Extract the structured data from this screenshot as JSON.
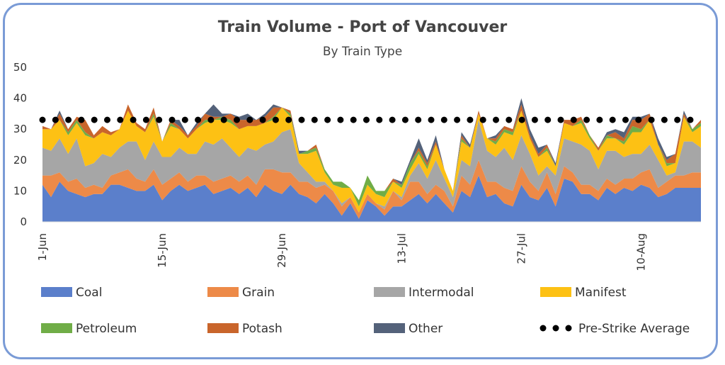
{
  "chart_data": {
    "type": "area",
    "stacked": true,
    "title": "Train Volume - Port of Vancouver",
    "subtitle": "By Train Type",
    "ylim": [
      0,
      50
    ],
    "yticks": [
      0,
      10,
      20,
      30,
      40,
      50
    ],
    "xlabels": [
      {
        "index": 0,
        "label": "1-Jun"
      },
      {
        "index": 14,
        "label": "15-Jun"
      },
      {
        "index": 28,
        "label": "29-Jun"
      },
      {
        "index": 42,
        "label": "13-Jul"
      },
      {
        "index": 56,
        "label": "27-Jul"
      },
      {
        "index": 70,
        "label": "10-Aug"
      }
    ],
    "legend_position": "bottom",
    "reference_line": {
      "name": "Pre-Strike Average",
      "value": 33,
      "color": "#000000"
    },
    "series": [
      {
        "name": "Coal",
        "color": "#5B7FCB",
        "values": [
          12,
          8,
          13,
          10,
          9,
          8,
          9,
          9,
          12,
          12,
          11,
          10,
          10,
          12,
          7,
          10,
          12,
          10,
          11,
          12,
          9,
          10,
          11,
          9,
          11,
          8,
          12,
          10,
          9,
          12,
          9,
          8,
          6,
          9,
          6,
          2,
          6,
          1,
          7,
          5,
          2,
          5,
          5,
          7,
          9,
          6,
          9,
          6,
          3,
          10,
          8,
          15,
          8,
          9,
          6,
          5,
          12,
          8,
          7,
          11,
          5,
          14,
          13,
          9,
          9,
          7,
          11,
          9,
          11,
          10,
          12,
          11,
          8,
          9,
          11,
          11,
          11,
          11
        ],
        "name_bind": "chart_data.series.0.name"
      },
      {
        "name": "Grain",
        "color": "#ED8A48",
        "values": [
          3,
          7,
          3,
          3,
          5,
          3,
          3,
          2,
          3,
          4,
          6,
          4,
          3,
          5,
          5,
          4,
          4,
          3,
          4,
          3,
          4,
          4,
          4,
          4,
          4,
          4,
          5,
          7,
          7,
          4,
          4,
          5,
          5,
          3,
          4,
          3,
          2,
          2,
          2,
          1,
          2,
          5,
          2,
          6,
          4,
          3,
          3,
          4,
          2,
          5,
          4,
          5,
          5,
          4,
          5,
          5,
          6,
          5,
          3,
          5,
          4,
          4,
          3,
          3,
          3,
          3,
          3,
          3,
          3,
          4,
          4,
          6,
          3,
          4,
          4,
          4,
          5,
          5
        ]
      },
      {
        "name": "Intermodal",
        "color": "#A6A6A6",
        "values": [
          9,
          8,
          11,
          9,
          13,
          7,
          7,
          11,
          6,
          8,
          9,
          12,
          7,
          9,
          9,
          7,
          8,
          9,
          7,
          11,
          12,
          13,
          9,
          8,
          9,
          11,
          8,
          9,
          13,
          14,
          6,
          3,
          2,
          1,
          0,
          1,
          0,
          0,
          0,
          0,
          1,
          0,
          1,
          2,
          6,
          5,
          8,
          4,
          3,
          5,
          6,
          13,
          10,
          8,
          13,
          10,
          10,
          9,
          5,
          2,
          6,
          9,
          10,
          13,
          11,
          7,
          9,
          11,
          7,
          8,
          6,
          8,
          9,
          2,
          1,
          11,
          10,
          8
        ]
      },
      {
        "name": "Manifest",
        "color": "#FDC114",
        "values": [
          6,
          7,
          6,
          6,
          5,
          10,
          8,
          7,
          7,
          6,
          10,
          5,
          9,
          8,
          5,
          10,
          6,
          5,
          8,
          6,
          8,
          6,
          8,
          9,
          7,
          8,
          7,
          7,
          8,
          4,
          3,
          6,
          10,
          3,
          2,
          5,
          3,
          2,
          3,
          3,
          3,
          3,
          3,
          2,
          3,
          3,
          5,
          3,
          2,
          6,
          6,
          2,
          4,
          4,
          5,
          8,
          8,
          5,
          6,
          5,
          3,
          5,
          5,
          7,
          4,
          6,
          4,
          4,
          4,
          7,
          7,
          8,
          5,
          3,
          3,
          8,
          3,
          7
        ]
      },
      {
        "name": "Petroleum",
        "color": "#70AD47",
        "values": [
          0,
          0,
          0,
          1,
          1,
          1,
          0,
          0,
          0,
          0,
          0,
          0,
          0,
          1,
          0,
          1,
          0,
          0,
          0,
          1,
          0,
          1,
          1,
          0,
          0,
          0,
          0,
          1,
          0,
          1,
          0,
          1,
          1,
          1,
          1,
          2,
          0,
          2,
          3,
          1,
          2,
          0,
          1,
          2,
          1,
          1,
          0,
          0,
          0,
          1,
          0,
          0,
          0,
          1,
          1,
          1,
          0,
          0,
          0,
          1,
          0,
          0,
          0,
          1,
          1,
          0,
          1,
          0,
          1,
          2,
          1,
          0,
          0,
          1,
          0,
          0,
          1,
          1
        ]
      },
      {
        "name": "Potash",
        "color": "#C9652B",
        "values": [
          1,
          0,
          2,
          1,
          1,
          4,
          1,
          2,
          1,
          0,
          2,
          1,
          1,
          2,
          0,
          1,
          1,
          1,
          1,
          2,
          1,
          0,
          2,
          3,
          2,
          2,
          2,
          3,
          0,
          1,
          0,
          0,
          1,
          0,
          0,
          0,
          0,
          0,
          0,
          0,
          0,
          1,
          0,
          0,
          1,
          1,
          1,
          0,
          0,
          1,
          0,
          1,
          0,
          1,
          1,
          1,
          2,
          1,
          1,
          1,
          0,
          1,
          2,
          1,
          0,
          1,
          0,
          2,
          1,
          2,
          3,
          2,
          0,
          1,
          3,
          1,
          0,
          1
        ]
      },
      {
        "name": "Other",
        "color": "#54627A",
        "values": [
          0,
          0,
          1,
          0,
          0,
          0,
          0,
          0,
          0,
          0,
          0,
          0,
          0,
          0,
          0,
          0,
          2,
          0,
          1,
          0,
          4,
          1,
          0,
          1,
          2,
          0,
          1,
          1,
          0,
          0,
          1,
          0,
          0,
          0,
          0,
          0,
          0,
          0,
          0,
          0,
          0,
          0,
          1,
          1,
          3,
          1,
          2,
          0,
          0,
          1,
          1,
          0,
          0,
          1,
          0,
          0,
          2,
          2,
          2,
          0,
          1,
          0,
          0,
          0,
          0,
          0,
          1,
          1,
          2,
          1,
          1,
          0,
          2,
          1,
          0,
          1,
          0,
          0
        ]
      }
    ]
  }
}
